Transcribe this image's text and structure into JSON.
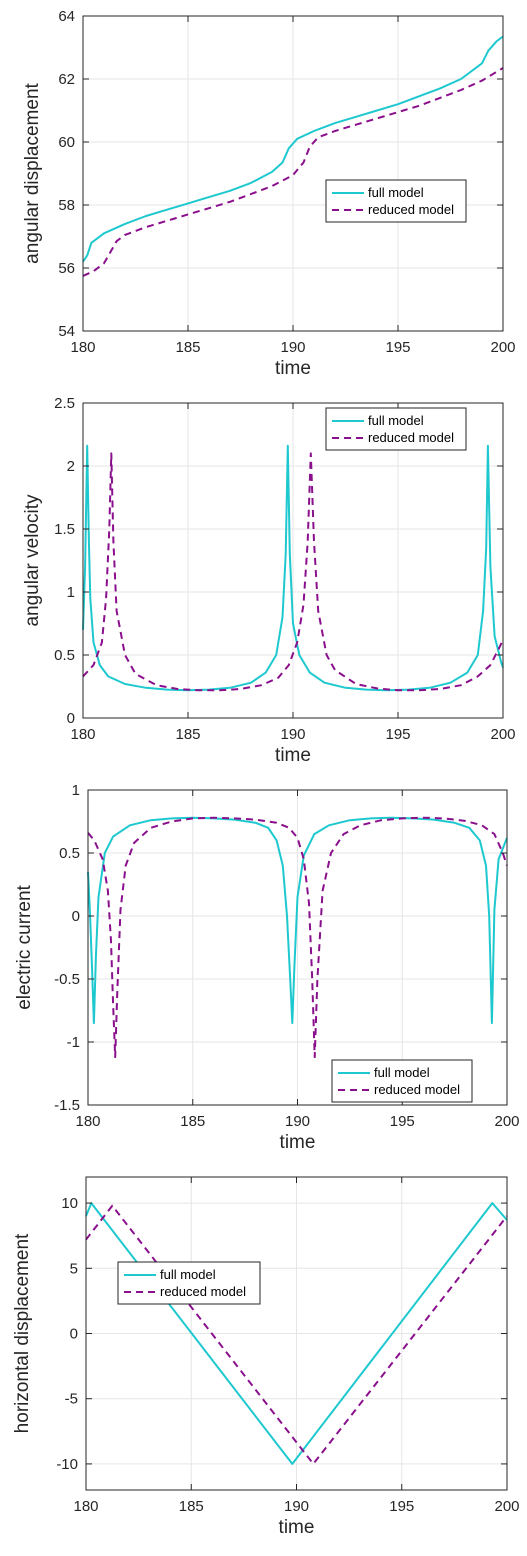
{
  "colors": {
    "full": "#1ec8cf",
    "reduced": "#8a0f8c",
    "axis": "#262626",
    "grid": "#e6e6e6"
  },
  "chart_data": [
    {
      "type": "line",
      "xlabel": "time",
      "ylabel": "angular displacement",
      "xlim": [
        180,
        200
      ],
      "ylim": [
        54,
        64
      ],
      "xticks": [
        "180",
        "185",
        "190",
        "195",
        "200"
      ],
      "yticks": [
        "54",
        "56",
        "58",
        "60",
        "62",
        "64"
      ],
      "grid": true,
      "legend_position": "center-right",
      "series": [
        {
          "name": "full model",
          "style": "solid",
          "x": [
            180,
            180.2,
            180.4,
            181,
            182,
            183,
            184,
            185,
            186,
            187,
            188,
            189,
            189.5,
            189.8,
            190.2,
            191,
            192,
            193,
            194,
            195,
            196,
            197,
            198,
            199,
            199.3,
            199.7,
            200
          ],
          "y": [
            56.2,
            56.4,
            56.8,
            57.1,
            57.4,
            57.65,
            57.85,
            58.05,
            58.25,
            58.45,
            58.7,
            59.05,
            59.35,
            59.8,
            60.1,
            60.35,
            60.6,
            60.8,
            61.0,
            61.2,
            61.45,
            61.7,
            62.0,
            62.5,
            62.9,
            63.2,
            63.35
          ]
        },
        {
          "name": "reduced model",
          "style": "dashed",
          "x": [
            180,
            180.5,
            181,
            181.3,
            181.6,
            182,
            183,
            184,
            185,
            186,
            187,
            188,
            189,
            190,
            190.5,
            190.8,
            191.2,
            192,
            193,
            194,
            195,
            196,
            197,
            198,
            199,
            199.5,
            200
          ],
          "y": [
            55.75,
            55.9,
            56.15,
            56.5,
            56.85,
            57.05,
            57.3,
            57.5,
            57.7,
            57.9,
            58.1,
            58.35,
            58.6,
            58.95,
            59.35,
            59.85,
            60.15,
            60.35,
            60.55,
            60.75,
            60.95,
            61.15,
            61.4,
            61.65,
            61.95,
            62.15,
            62.35
          ]
        }
      ]
    },
    {
      "type": "line",
      "xlabel": "time",
      "ylabel": "angular velocity",
      "xlim": [
        180,
        200
      ],
      "ylim": [
        0,
        2.5
      ],
      "xticks": [
        "180",
        "185",
        "190",
        "195",
        "200"
      ],
      "yticks": [
        "0",
        "0.5",
        "1",
        "1.5",
        "2",
        "2.5"
      ],
      "grid": true,
      "legend_position": "top-right",
      "series": [
        {
          "name": "full model",
          "style": "solid",
          "x": [
            180,
            180.1,
            180.2,
            180.28,
            180.35,
            180.5,
            180.8,
            181.2,
            182,
            183,
            184,
            185,
            186,
            187,
            188,
            188.7,
            189.2,
            189.5,
            189.65,
            189.75,
            189.85,
            190,
            190.3,
            190.8,
            191.5,
            192.5,
            193.5,
            194.5,
            195.5,
            196.5,
            197.5,
            198.3,
            198.8,
            199.05,
            199.2,
            199.28,
            199.4,
            199.6,
            199.9,
            200
          ],
          "y": [
            0.7,
            1.2,
            2.16,
            1.4,
            0.95,
            0.6,
            0.42,
            0.33,
            0.27,
            0.24,
            0.225,
            0.22,
            0.225,
            0.24,
            0.28,
            0.36,
            0.5,
            0.8,
            1.3,
            2.16,
            1.3,
            0.75,
            0.5,
            0.36,
            0.28,
            0.24,
            0.225,
            0.22,
            0.225,
            0.24,
            0.28,
            0.36,
            0.5,
            0.85,
            1.35,
            2.16,
            1.2,
            0.65,
            0.45,
            0.4
          ]
        },
        {
          "name": "reduced model",
          "style": "dashed",
          "x": [
            180,
            180.5,
            180.9,
            181.1,
            181.25,
            181.35,
            181.45,
            181.6,
            182,
            182.5,
            183.5,
            184.5,
            185.5,
            186.5,
            187.5,
            188.5,
            189.3,
            189.8,
            190.2,
            190.5,
            190.7,
            190.85,
            191,
            191.2,
            191.6,
            192,
            193,
            194,
            195,
            196,
            197,
            198,
            198.8,
            199.4,
            199.8,
            200
          ],
          "y": [
            0.33,
            0.42,
            0.6,
            0.95,
            1.5,
            2.1,
            1.4,
            0.85,
            0.5,
            0.35,
            0.26,
            0.23,
            0.22,
            0.22,
            0.23,
            0.26,
            0.32,
            0.42,
            0.6,
            0.9,
            1.4,
            2.1,
            1.4,
            0.85,
            0.5,
            0.38,
            0.27,
            0.235,
            0.22,
            0.22,
            0.23,
            0.26,
            0.33,
            0.42,
            0.55,
            0.62
          ]
        }
      ]
    },
    {
      "type": "line",
      "xlabel": "time",
      "ylabel": "electric current",
      "xlim": [
        180,
        200
      ],
      "ylim": [
        -1.5,
        1
      ],
      "xticks": [
        "180",
        "185",
        "190",
        "195",
        "200"
      ],
      "yticks": [
        "-1.5",
        "-1",
        "-0.5",
        "0",
        "0.5",
        "1"
      ],
      "grid": true,
      "legend_position": "bottom-right",
      "series": [
        {
          "name": "full model",
          "style": "solid",
          "x": [
            180,
            180.1,
            180.2,
            180.28,
            180.38,
            180.5,
            180.8,
            181.2,
            182,
            183,
            184,
            185,
            186,
            187,
            188,
            188.6,
            189,
            189.3,
            189.5,
            189.65,
            189.75,
            189.85,
            190,
            190.3,
            190.8,
            191.5,
            192.5,
            193.5,
            194.5,
            195.5,
            196.5,
            197.5,
            198.2,
            198.7,
            199,
            199.15,
            199.28,
            199.4,
            199.6,
            200
          ],
          "y": [
            0.35,
            0.0,
            -0.45,
            -0.85,
            -0.3,
            0.15,
            0.5,
            0.63,
            0.72,
            0.76,
            0.775,
            0.78,
            0.775,
            0.765,
            0.74,
            0.7,
            0.6,
            0.4,
            0.0,
            -0.5,
            -0.85,
            -0.4,
            0.15,
            0.48,
            0.65,
            0.72,
            0.76,
            0.775,
            0.78,
            0.775,
            0.765,
            0.74,
            0.7,
            0.6,
            0.4,
            0.0,
            -0.85,
            0.05,
            0.45,
            0.62
          ]
        },
        {
          "name": "reduced model",
          "style": "dashed",
          "x": [
            180,
            180.3,
            180.7,
            180.95,
            181.1,
            181.2,
            181.3,
            181.4,
            181.55,
            181.8,
            182.2,
            183,
            184,
            185,
            186,
            187,
            188,
            189,
            189.6,
            190,
            190.3,
            190.55,
            190.7,
            190.82,
            190.95,
            191.2,
            191.6,
            192.2,
            193,
            194,
            195,
            196,
            197,
            198,
            198.8,
            199.4,
            199.8,
            200
          ],
          "y": [
            0.66,
            0.6,
            0.45,
            0.2,
            -0.2,
            -0.7,
            -1.12,
            -0.6,
            0.05,
            0.4,
            0.58,
            0.7,
            0.75,
            0.775,
            0.78,
            0.775,
            0.765,
            0.74,
            0.7,
            0.62,
            0.45,
            0.1,
            -0.5,
            -1.12,
            -0.5,
            0.2,
            0.5,
            0.65,
            0.72,
            0.76,
            0.775,
            0.78,
            0.775,
            0.755,
            0.72,
            0.65,
            0.5,
            0.4
          ]
        }
      ]
    },
    {
      "type": "line",
      "xlabel": "time",
      "ylabel": "horizontal displacement",
      "xlim": [
        180,
        200
      ],
      "ylim": [
        -12,
        12
      ],
      "xticks": [
        "180",
        "185",
        "190",
        "195",
        "200"
      ],
      "yticks": [
        "-10",
        "-5",
        "0",
        "5",
        "10"
      ],
      "grid": true,
      "legend_position": "center-left",
      "series": [
        {
          "name": "full model",
          "style": "solid",
          "x": [
            180,
            180.25,
            189.8,
            199.3,
            200
          ],
          "y": [
            9.0,
            10.0,
            -10.0,
            10.0,
            8.7
          ]
        },
        {
          "name": "reduced model",
          "style": "dashed",
          "x": [
            180,
            181.25,
            190.8,
            200
          ],
          "y": [
            7.2,
            9.8,
            -10.0,
            9.0
          ]
        }
      ]
    }
  ]
}
